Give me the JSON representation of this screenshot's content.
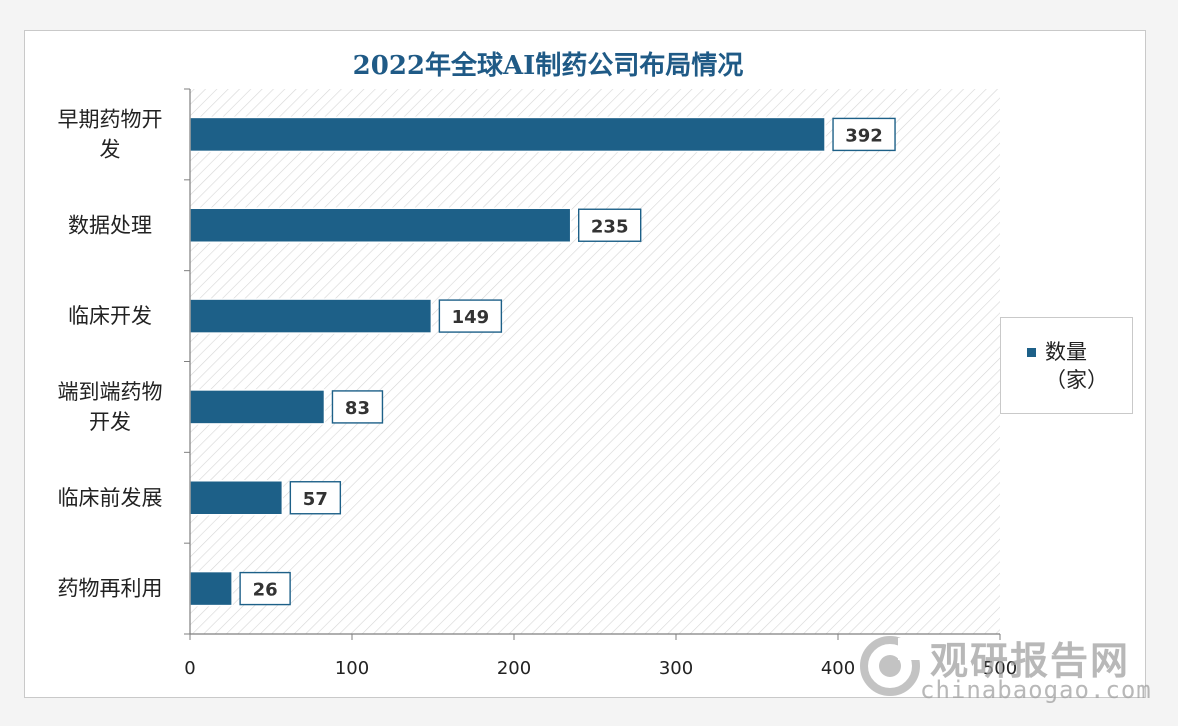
{
  "chart_data": {
    "type": "bar",
    "orientation": "horizontal",
    "title": "2022年全球AI制药公司布局情况",
    "categories": [
      "早期药物开发",
      "数据处理",
      "临床开发",
      "端到端药物开发",
      "临床前发展",
      "药物再利用"
    ],
    "series": [
      {
        "name": "数量（家）",
        "values": [
          392,
          235,
          149,
          83,
          57,
          26
        ],
        "color": "#1d6088"
      }
    ],
    "xlim": [
      0,
      500
    ],
    "xticks": [
      "0",
      "100",
      "200",
      "300",
      "400",
      "500"
    ],
    "data_labels": true,
    "legend": "right",
    "plot_background": "diagonal-hatch"
  },
  "watermark": {
    "cn": "观研报告网",
    "en": "chinabaogao.com"
  },
  "colors": {
    "bar": "#1d6088",
    "title": "#1f5a86",
    "label_border": "#1d6088"
  }
}
